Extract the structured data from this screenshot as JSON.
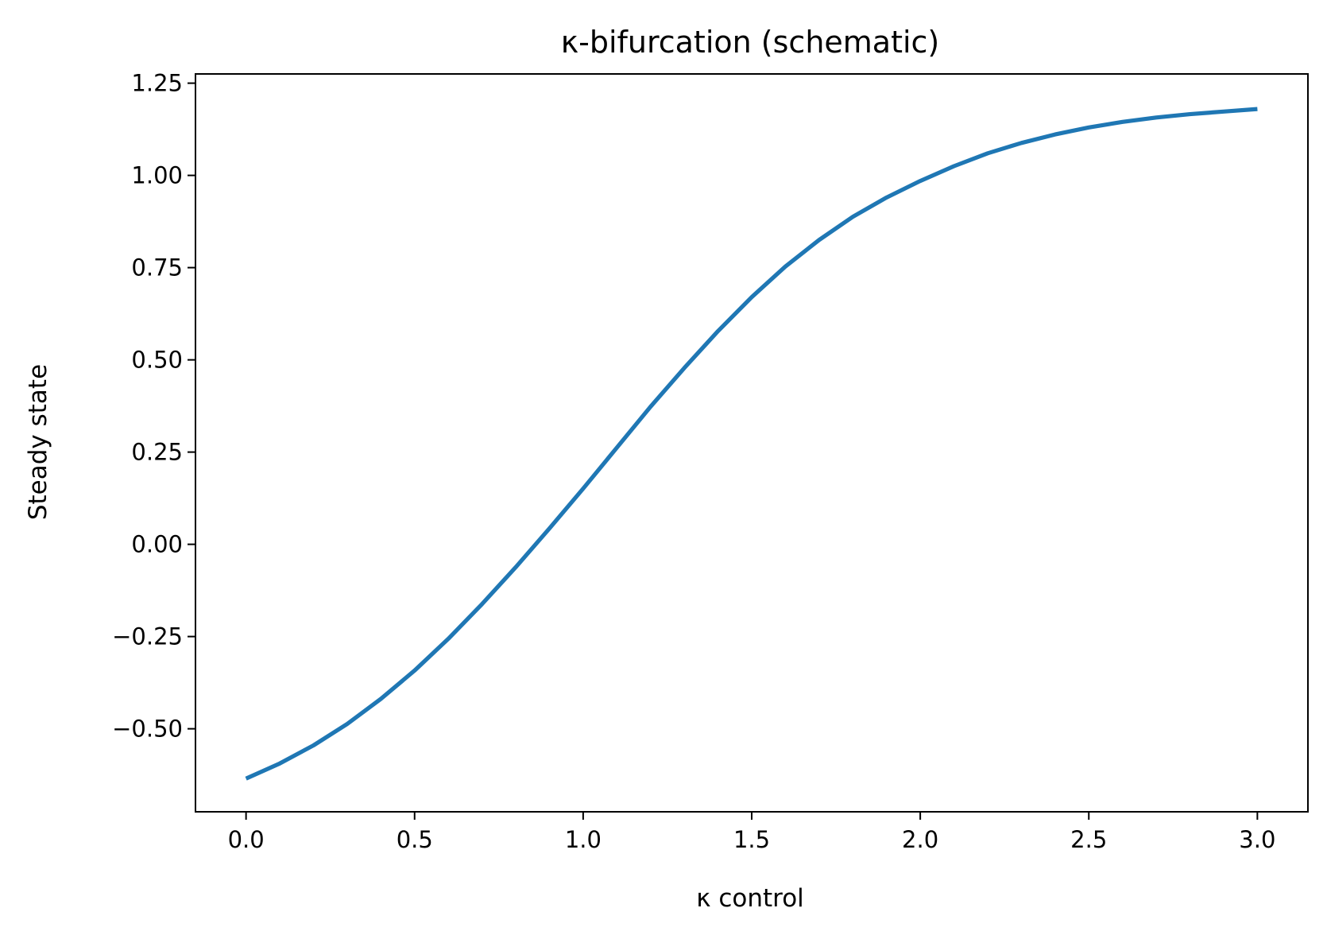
{
  "chart_data": {
    "type": "line",
    "title": "κ-bifurcation (schematic)",
    "xlabel": "κ control",
    "ylabel": "Steady state",
    "xlim": [
      -0.15,
      3.15
    ],
    "ylim": [
      -0.725,
      1.275
    ],
    "xticks": [
      0.0,
      0.5,
      1.0,
      1.5,
      2.0,
      2.5,
      3.0
    ],
    "xtick_labels": [
      "0.0",
      "0.5",
      "1.0",
      "1.5",
      "2.0",
      "2.5",
      "3.0"
    ],
    "yticks": [
      -0.5,
      -0.25,
      0.0,
      0.25,
      0.5,
      0.75,
      1.0,
      1.25
    ],
    "ytick_labels": [
      "−0.50",
      "−0.25",
      "0.00",
      "0.25",
      "0.50",
      "0.75",
      "1.00",
      "1.25"
    ],
    "grid": false,
    "series": [
      {
        "color": "#1f77b4",
        "x": [
          0.0,
          0.1,
          0.2,
          0.3,
          0.4,
          0.5,
          0.6,
          0.7,
          0.8,
          0.9,
          1.0,
          1.1,
          1.2,
          1.3,
          1.4,
          1.5,
          1.6,
          1.7,
          1.8,
          1.9,
          2.0,
          2.1,
          2.2,
          2.3,
          2.4,
          2.5,
          2.6,
          2.7,
          2.8,
          2.9,
          3.0
        ],
        "y": [
          -0.635,
          -0.594,
          -0.545,
          -0.487,
          -0.419,
          -0.342,
          -0.256,
          -0.162,
          -0.062,
          0.043,
          0.151,
          0.262,
          0.373,
          0.478,
          0.578,
          0.67,
          0.753,
          0.825,
          0.888,
          0.94,
          0.985,
          1.025,
          1.06,
          1.088,
          1.111,
          1.13,
          1.145,
          1.157,
          1.166,
          1.173,
          1.18
        ]
      }
    ]
  }
}
